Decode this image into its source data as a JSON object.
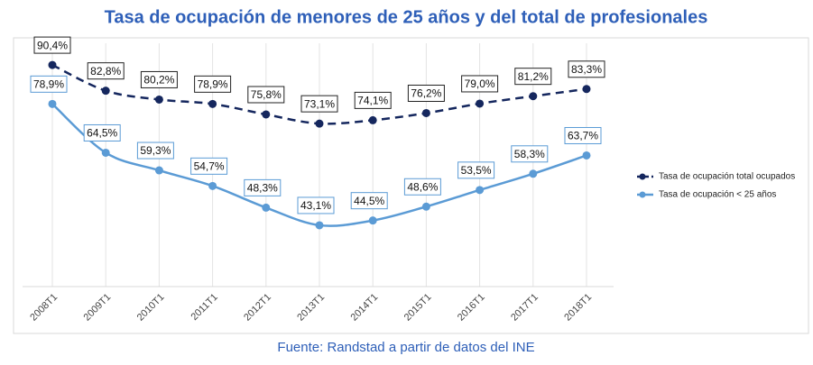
{
  "chart_data": {
    "type": "line",
    "title": "Tasa de ocupación de menores de 25 años y del total de profesionales",
    "source": "Fuente: Randstad a partir de datos del INE",
    "categories": [
      "2008T1",
      "2009T1",
      "2010T1",
      "2011T1",
      "2012T1",
      "2013T1",
      "2014T1",
      "2015T1",
      "2016T1",
      "2017T1",
      "2018T1"
    ],
    "series": [
      {
        "name": "Tasa de ocupación total ocupados",
        "color": "#15275e",
        "dash": true,
        "values": [
          90.4,
          82.8,
          80.2,
          78.9,
          75.8,
          73.1,
          74.1,
          76.2,
          79.0,
          81.2,
          83.3
        ],
        "value_labels": [
          "90,4%",
          "82,8%",
          "80,2%",
          "78,9%",
          "75,8%",
          "73,1%",
          "74,1%",
          "76,2%",
          "79,0%",
          "81,2%",
          "83,3%"
        ]
      },
      {
        "name": "Tasa de ocupación < 25 años",
        "color": "#5b9bd5",
        "dash": false,
        "values": [
          78.9,
          64.5,
          59.3,
          54.7,
          48.3,
          43.1,
          44.5,
          48.6,
          53.5,
          58.3,
          63.7
        ],
        "value_labels": [
          "78,9%",
          "64,5%",
          "59,3%",
          "54,7%",
          "48,3%",
          "43,1%",
          "44,5%",
          "48,6%",
          "53,5%",
          "58,3%",
          "63,7%"
        ]
      }
    ],
    "ylim": [
      25,
      100
    ],
    "grid": true
  }
}
